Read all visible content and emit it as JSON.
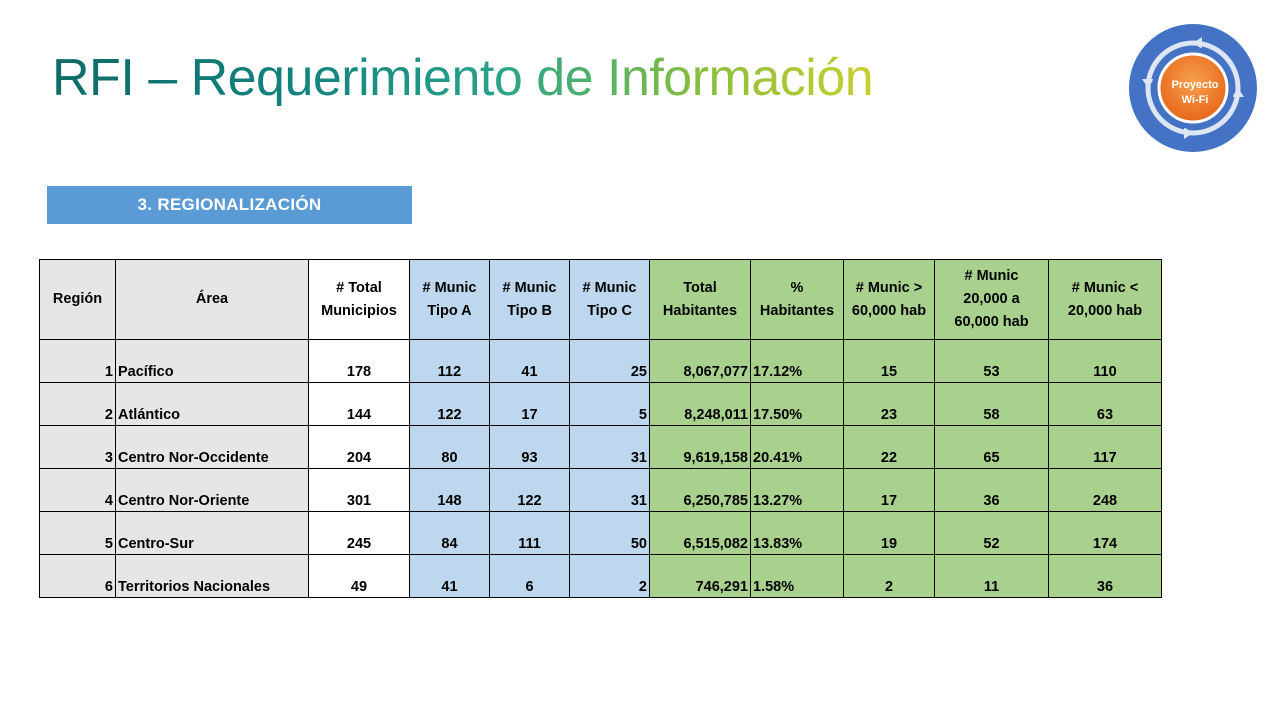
{
  "title": "RFI – Requerimiento de Información",
  "logo": {
    "label_line1": "Proyecto",
    "label_line2": "Wi-Fi"
  },
  "section_heading": "3. REGIONALIZACIÓN",
  "colors": {
    "header_bar": "#5b9bd5",
    "region_cells": "#e7e6e6",
    "tipo_cells": "#bdd7ee",
    "population_cells": "#a9d18e",
    "logo_ring": "#4472c4",
    "logo_center": "#f07a1e"
  },
  "table": {
    "headers": [
      [
        "Región"
      ],
      [
        "Área"
      ],
      [
        "# Total",
        "Municipios"
      ],
      [
        "# Munic",
        "Tipo A"
      ],
      [
        "# Munic",
        "Tipo B"
      ],
      [
        "# Munic",
        "Tipo C"
      ],
      [
        "Total",
        "Habitantes"
      ],
      [
        "%",
        "Habitantes"
      ],
      [
        "# Munic >",
        "60,000 hab"
      ],
      [
        "# Munic",
        "20,000 a",
        "60,000 hab"
      ],
      [
        "# Munic <",
        "20,000 hab"
      ]
    ],
    "rows": [
      [
        "1",
        "Pacífico",
        "178",
        "112",
        "41",
        "25",
        "8,067,077",
        "17.12%",
        "15",
        "53",
        "110"
      ],
      [
        "2",
        "Atlántico",
        "144",
        "122",
        "17",
        "5",
        "8,248,011",
        "17.50%",
        "23",
        "58",
        "63"
      ],
      [
        "3",
        "Centro Nor-Occidente",
        "204",
        "80",
        "93",
        "31",
        "9,619,158",
        "20.41%",
        "22",
        "65",
        "117"
      ],
      [
        "4",
        "Centro Nor-Oriente",
        "301",
        "148",
        "122",
        "31",
        "6,250,785",
        "13.27%",
        "17",
        "36",
        "248"
      ],
      [
        "5",
        "Centro-Sur",
        "245",
        "84",
        "111",
        "50",
        "6,515,082",
        "13.83%",
        "19",
        "52",
        "174"
      ],
      [
        "6",
        "Territorios Nacionales",
        "49",
        "41",
        "6",
        "2",
        "746,291",
        "1.58%",
        "2",
        "11",
        "36"
      ]
    ]
  }
}
